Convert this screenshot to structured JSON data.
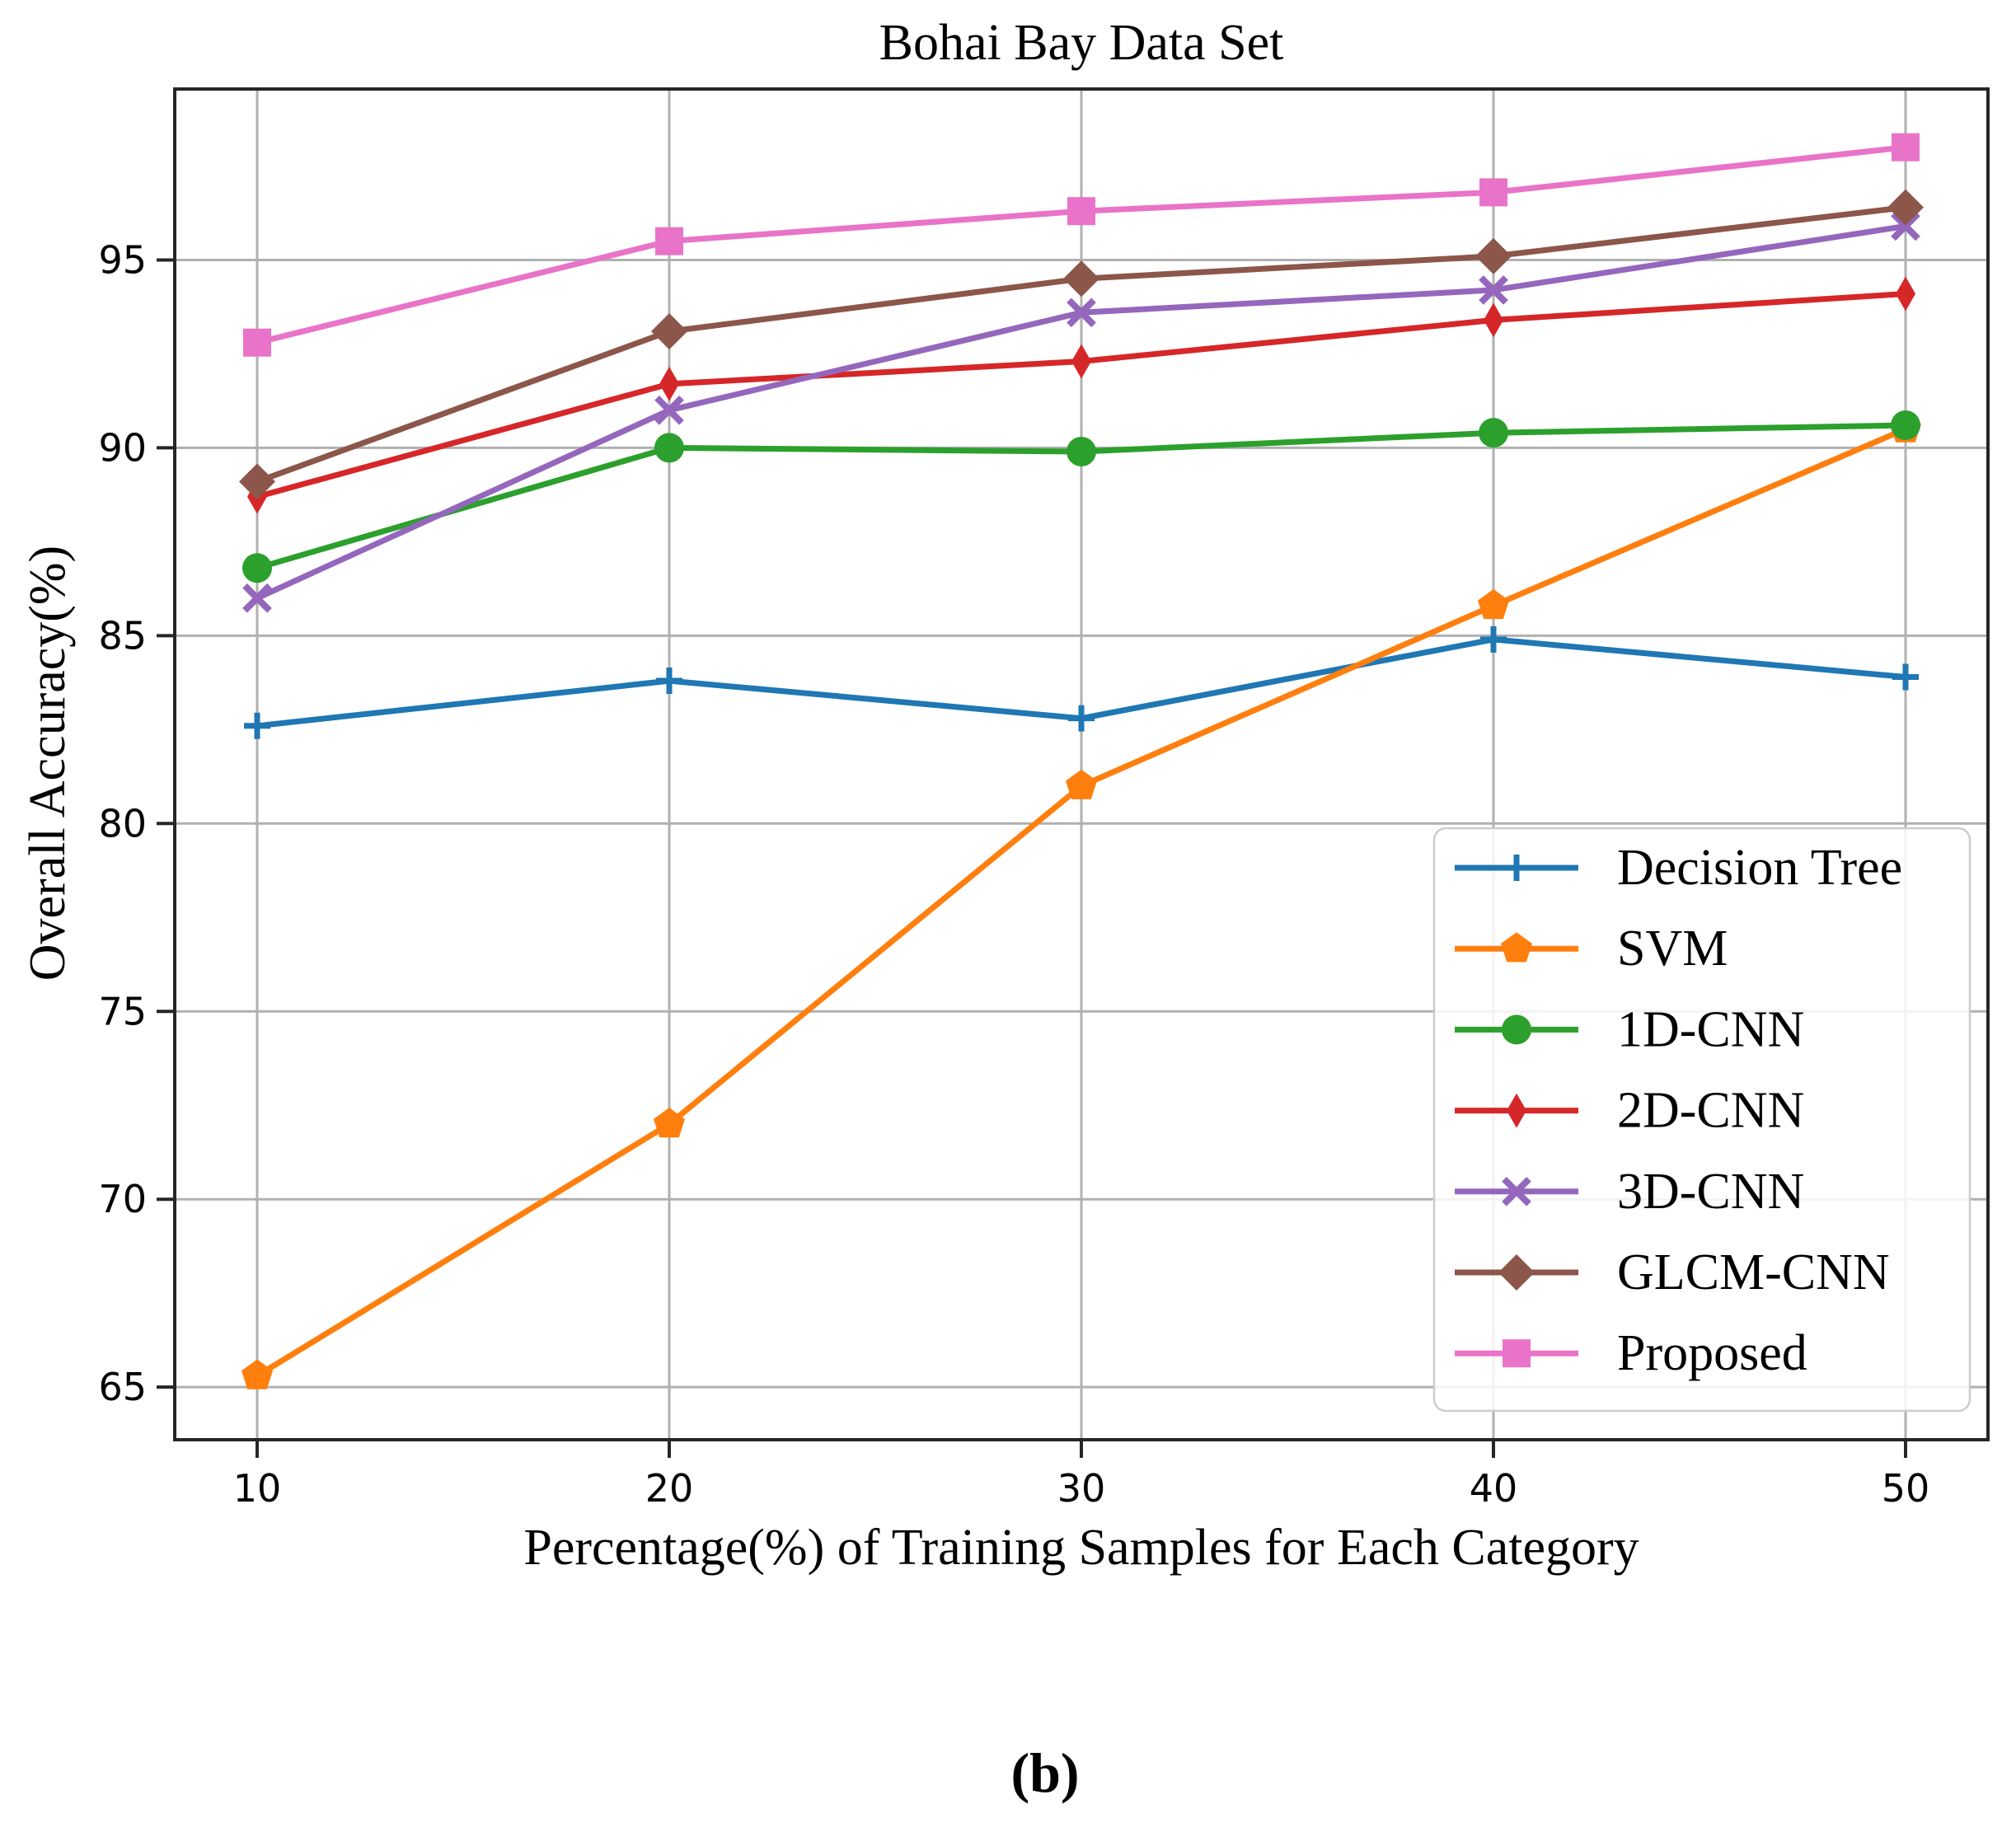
{
  "figure": {
    "caption": "(b)"
  },
  "chart_data": {
    "type": "line",
    "title": "Bohai Bay Data Set",
    "xlabel": "Percentage(%) of Training Samples for Each Category",
    "ylabel": "Overall Accuracy(%)",
    "x": [
      10,
      20,
      30,
      40,
      50
    ],
    "xticks": [
      10,
      20,
      30,
      40,
      50
    ],
    "yticks": [
      65,
      70,
      75,
      80,
      85,
      90,
      95
    ],
    "xlim": [
      8,
      52
    ],
    "ylim": [
      63.6,
      99.55
    ],
    "grid": true,
    "grid_color": "#b0b0b0",
    "spine_color": "#262626",
    "legend_position": "lower right",
    "series": [
      {
        "name": "Decision Tree",
        "color": "#1f77b4",
        "marker": "plus",
        "values": [
          82.6,
          83.8,
          82.8,
          84.9,
          83.9
        ]
      },
      {
        "name": "SVM",
        "color": "#ff7f0e",
        "marker": "pentagon",
        "values": [
          65.3,
          72.0,
          81.0,
          85.8,
          90.5
        ]
      },
      {
        "name": "1D-CNN",
        "color": "#2ca02c",
        "marker": "circle",
        "values": [
          86.8,
          90.0,
          89.9,
          90.4,
          90.6
        ]
      },
      {
        "name": "2D-CNN",
        "color": "#d62728",
        "marker": "thin-diamond",
        "values": [
          88.7,
          91.7,
          92.3,
          93.4,
          94.1
        ]
      },
      {
        "name": "3D-CNN",
        "color": "#9467bd",
        "marker": "x",
        "values": [
          86.0,
          91.0,
          93.6,
          94.2,
          95.9
        ]
      },
      {
        "name": "GLCM-CNN",
        "color": "#8c564b",
        "marker": "diamond",
        "values": [
          89.1,
          93.1,
          94.5,
          95.1,
          96.4
        ]
      },
      {
        "name": "Proposed",
        "color": "#e973c8",
        "marker": "square",
        "values": [
          92.8,
          95.5,
          96.3,
          96.8,
          98.0
        ]
      }
    ]
  }
}
